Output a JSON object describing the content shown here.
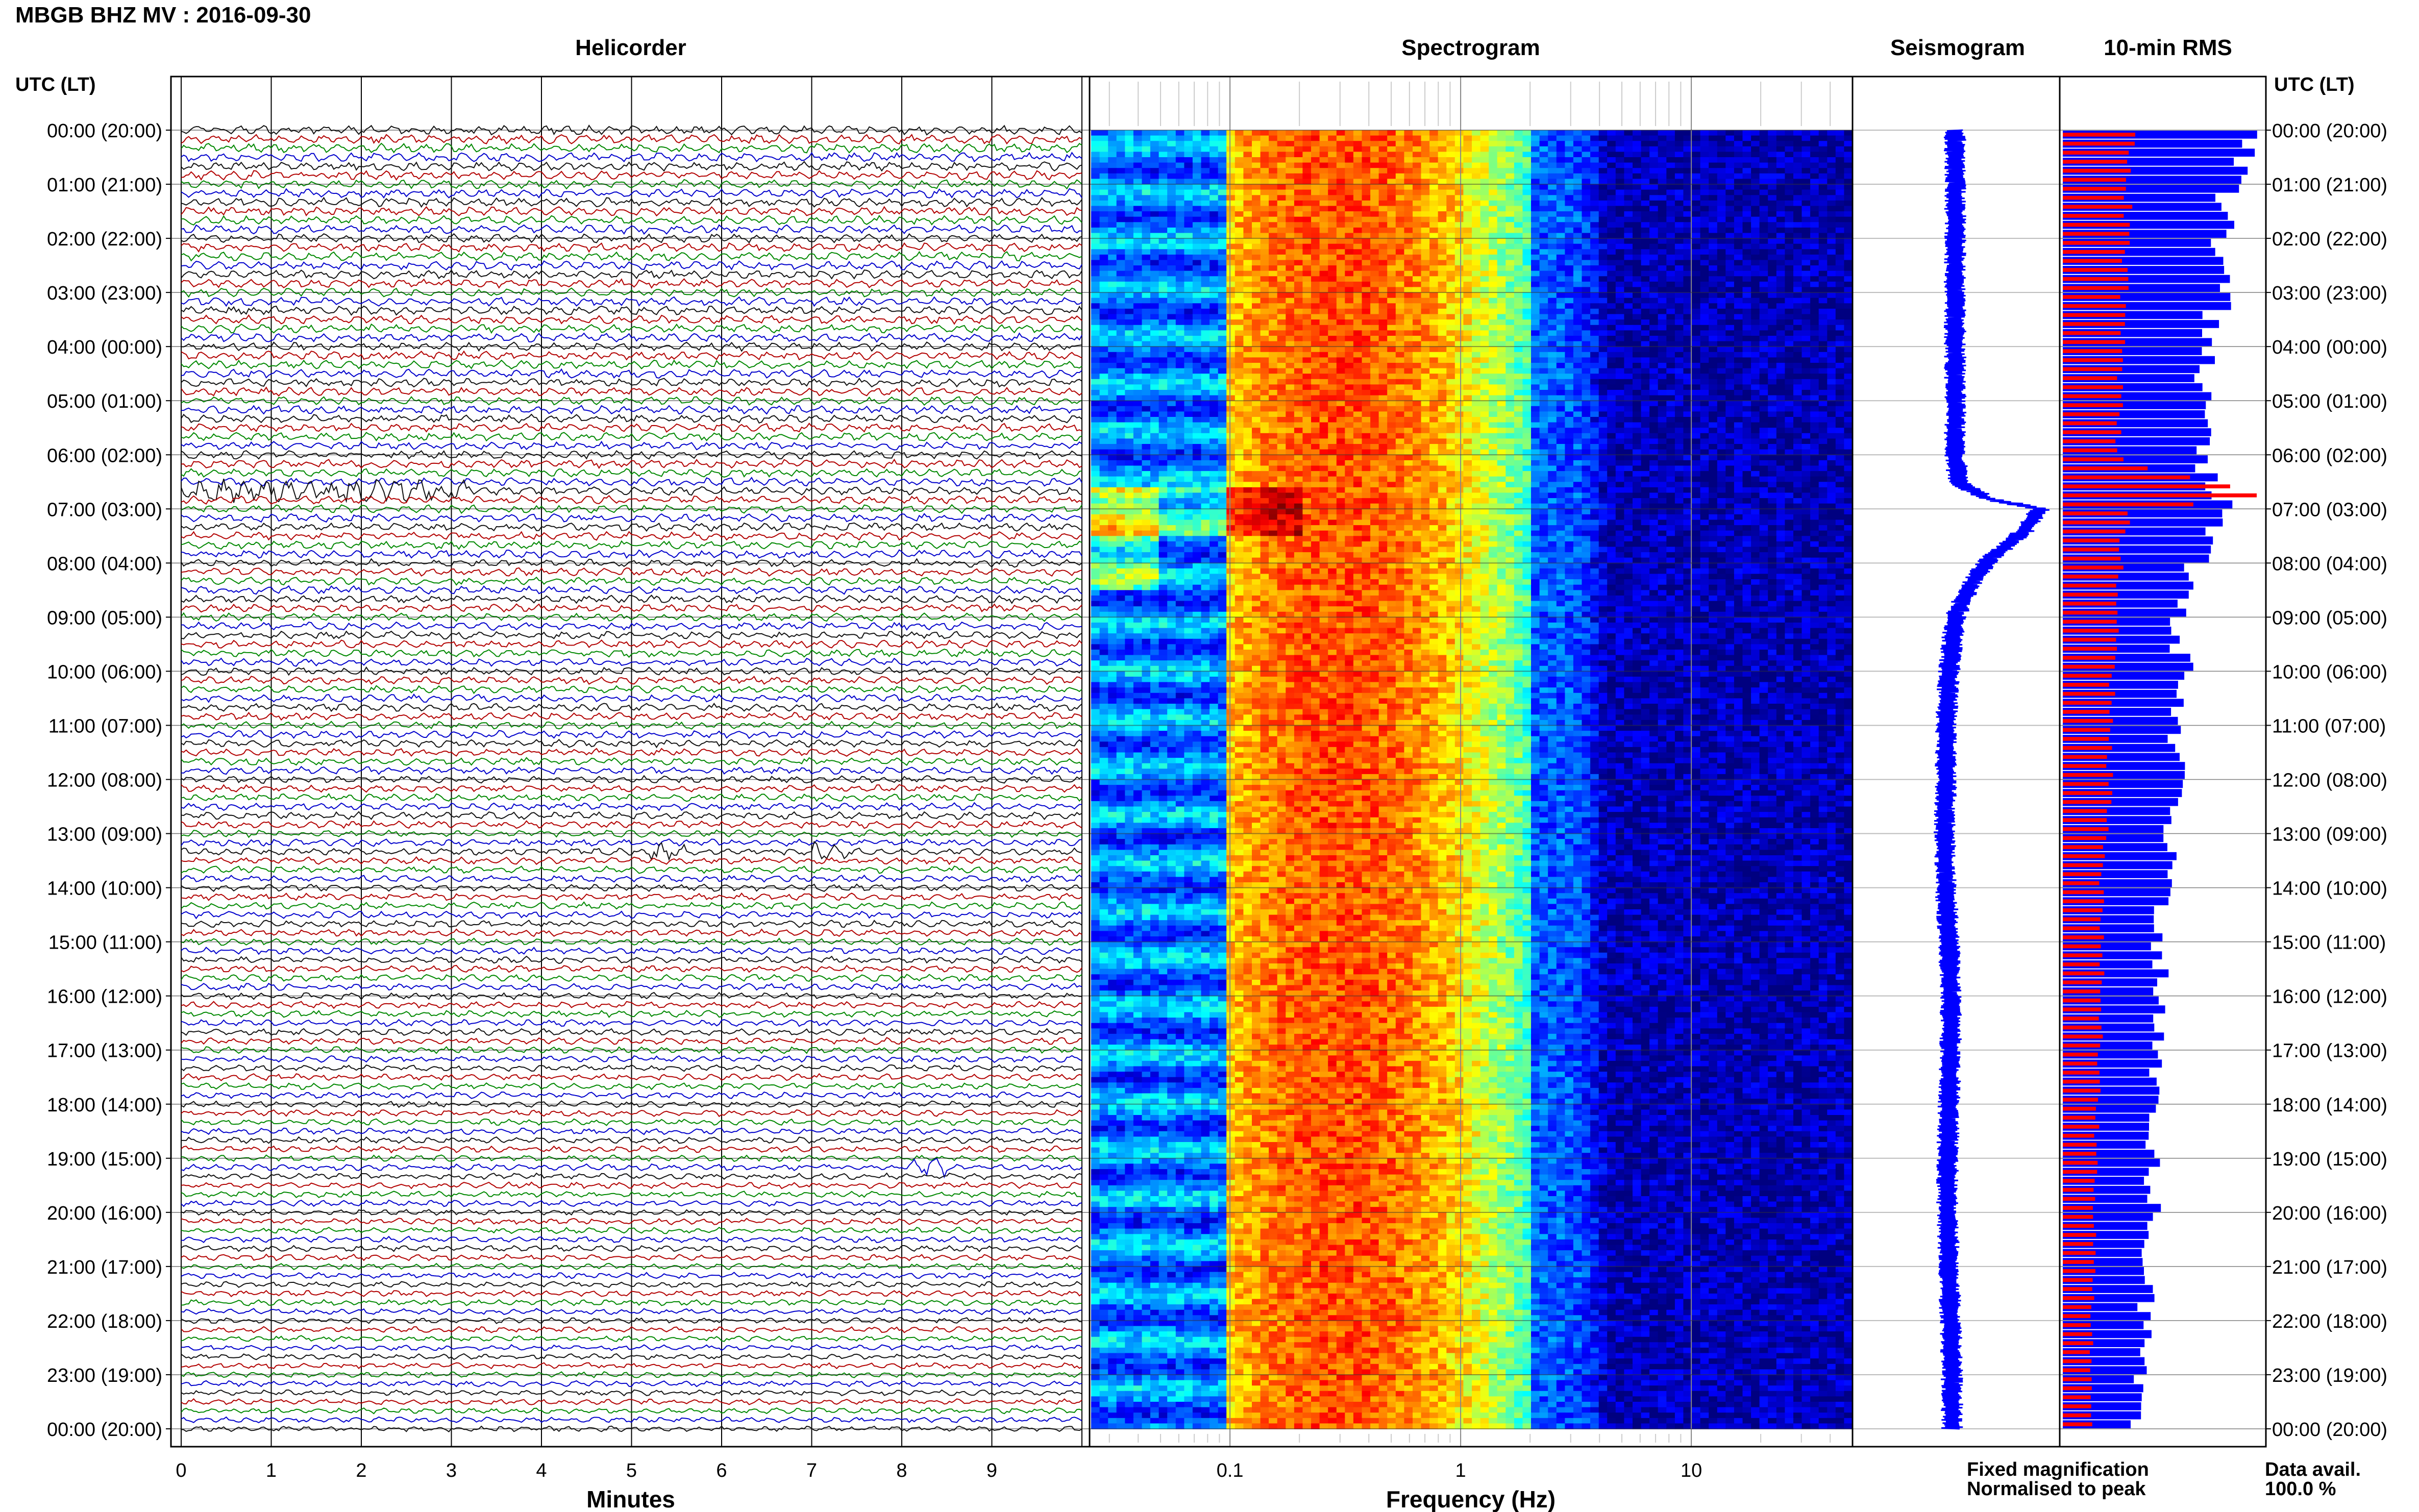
{
  "header": {
    "title": "MBGB BHZ MV : 2016-09-30"
  },
  "panels": {
    "helicorder": "Helicorder",
    "spectrogram": "Spectrogram",
    "seismogram": "Seismogram",
    "rms": "10-min RMS"
  },
  "axes": {
    "left_label": "UTC (LT)",
    "right_label": "UTC (LT)",
    "x_label_helicorder": "Minutes",
    "x_label_spectrogram": "Frequency (Hz)"
  },
  "time_rows": [
    "00:00 (20:00)",
    "01:00 (21:00)",
    "02:00 (22:00)",
    "03:00 (23:00)",
    "04:00 (00:00)",
    "05:00 (01:00)",
    "06:00 (02:00)",
    "07:00 (03:00)",
    "08:00 (04:00)",
    "09:00 (05:00)",
    "10:00 (06:00)",
    "11:00 (07:00)",
    "12:00 (08:00)",
    "13:00 (09:00)",
    "14:00 (10:00)",
    "15:00 (11:00)",
    "16:00 (12:00)",
    "17:00 (13:00)",
    "18:00 (14:00)",
    "19:00 (15:00)",
    "20:00 (16:00)",
    "21:00 (17:00)",
    "22:00 (18:00)",
    "23:00 (19:00)",
    "00:00 (20:00)"
  ],
  "legend": {
    "fixed": "Fixed magnification",
    "normalised": "Normalised to peak",
    "avail_label": "Data avail.",
    "avail_value": "100.0 %"
  },
  "colors": {
    "fixed": "#0000ff",
    "normalised": "#ff0000",
    "trace_black": "#111111",
    "trace_red": "#b20000",
    "trace_green": "#008800",
    "trace_blue": "#0000cc"
  },
  "chart_data": [
    {
      "type": "line",
      "title": "Helicorder",
      "xlabel": "Minutes",
      "ylabel": "UTC (LT)",
      "x_ticks": [
        "0",
        "1",
        "2",
        "3",
        "4",
        "5",
        "6",
        "7",
        "8",
        "9"
      ],
      "xlim": [
        0,
        10
      ],
      "lines_per_hour": 6,
      "line_minutes": 10,
      "trace_color_cycle": [
        "black",
        "red",
        "green",
        "blue"
      ],
      "events": [
        {
          "hour": 6.67,
          "minute_start": 0.0,
          "minute_end": 3.2,
          "label": ""
        },
        {
          "hour": 13.33,
          "minute_start": 5.2,
          "minute_end": 5.6,
          "label": ""
        },
        {
          "hour": 13.33,
          "minute_start": 7.0,
          "minute_end": 7.5,
          "label": ""
        },
        {
          "hour": 19.17,
          "minute_start": 8.1,
          "minute_end": 8.5,
          "label": ""
        }
      ]
    },
    {
      "type": "heatmap",
      "title": "Spectrogram",
      "xlabel": "Frequency (Hz)",
      "x_scale": "log",
      "xlim": [
        0.025,
        50
      ],
      "x_tick_labels": [
        "0.1",
        "1",
        "10"
      ],
      "peak_frequency_hz": 0.3,
      "colormap": "jet"
    },
    {
      "type": "line",
      "title": "Seismogram",
      "ylabel": "UTC (LT)",
      "x": [
        0,
        1,
        2,
        3,
        4,
        5,
        6,
        6.5,
        6.8,
        7.0,
        7.4,
        8.0,
        8.5,
        9.0,
        10,
        11,
        12,
        13,
        14,
        15,
        16,
        17,
        18,
        19,
        20,
        21,
        22,
        23,
        24
      ],
      "values": [
        0.0,
        0.0,
        0.0,
        0.0,
        0.0,
        0.0,
        0.0,
        0.02,
        0.2,
        0.55,
        0.45,
        0.2,
        0.08,
        0.0,
        -0.04,
        -0.06,
        -0.06,
        -0.07,
        -0.06,
        -0.04,
        -0.03,
        -0.03,
        -0.04,
        -0.05,
        -0.05,
        -0.04,
        -0.03,
        -0.02,
        -0.02
      ]
    },
    {
      "type": "bar",
      "title": "10-min RMS",
      "series": [
        {
          "name": "Fixed magnification",
          "x": [
            0,
            1,
            2,
            3,
            4,
            5,
            6,
            7,
            8,
            9,
            10,
            11,
            12,
            13,
            14,
            15,
            16,
            17,
            18,
            19,
            20,
            21,
            22,
            23,
            24
          ],
          "values": [
            0.95,
            0.86,
            0.8,
            0.82,
            0.75,
            0.73,
            0.72,
            0.88,
            0.66,
            0.6,
            0.62,
            0.58,
            0.62,
            0.56,
            0.52,
            0.5,
            0.52,
            0.5,
            0.47,
            0.46,
            0.46,
            0.44,
            0.42,
            0.4,
            0.38
          ]
        },
        {
          "name": "Normalised to peak",
          "x": [
            0,
            1,
            2,
            3,
            4,
            5,
            6,
            6.67,
            7,
            8,
            9,
            10,
            11,
            12,
            13,
            14,
            15,
            16,
            17,
            18,
            19,
            20,
            21,
            22,
            23,
            24
          ],
          "values": [
            0.37,
            0.34,
            0.32,
            0.32,
            0.3,
            0.3,
            0.29,
            1.0,
            0.33,
            0.3,
            0.28,
            0.26,
            0.24,
            0.24,
            0.22,
            0.2,
            0.2,
            0.2,
            0.19,
            0.18,
            0.17,
            0.16,
            0.16,
            0.15,
            0.15,
            0.15
          ]
        }
      ]
    }
  ]
}
